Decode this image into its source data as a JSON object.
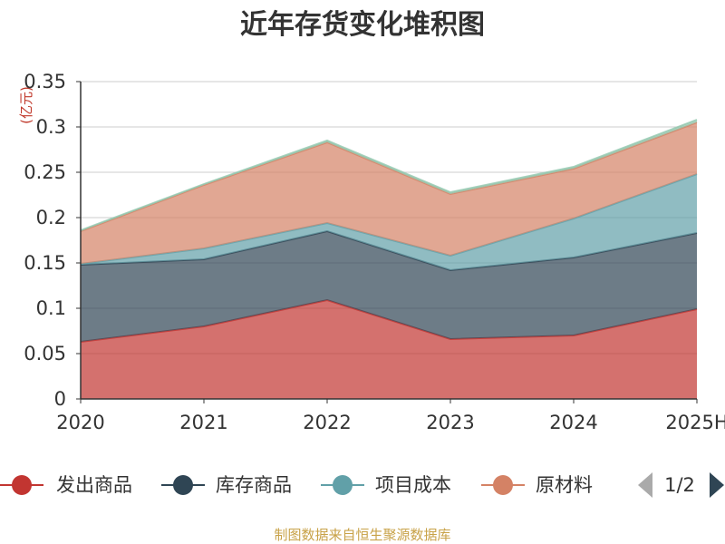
{
  "title": "近年存货变化堆积图",
  "unit_label": "(亿元)",
  "footer": "制图数据来自恒生聚源数据库",
  "pager": {
    "text": "1/2"
  },
  "chart_data": {
    "type": "area",
    "stacked": true,
    "title": "近年存货变化堆积图",
    "ylabel": "(亿元)",
    "categories": [
      "2020",
      "2021",
      "2022",
      "2023",
      "2024",
      "2025H"
    ],
    "ylim": [
      0,
      0.35
    ],
    "yticks": [
      "0",
      "0.05",
      "0.1",
      "0.15",
      "0.2",
      "0.25",
      "0.3",
      "0.35"
    ],
    "grid": true,
    "legend_position": "bottom",
    "series": [
      {
        "name": "发出商品",
        "color": "#c23531",
        "values": [
          0.063,
          0.08,
          0.109,
          0.066,
          0.07,
          0.099
        ]
      },
      {
        "name": "库存商品",
        "color": "#2f4554",
        "values": [
          0.085,
          0.074,
          0.076,
          0.076,
          0.086,
          0.084
        ]
      },
      {
        "name": "项目成本",
        "color": "#61a0a8",
        "values": [
          0.001,
          0.012,
          0.009,
          0.016,
          0.043,
          0.065
        ]
      },
      {
        "name": "原材料",
        "color": "#d48265",
        "values": [
          0.036,
          0.07,
          0.089,
          0.068,
          0.055,
          0.057
        ]
      },
      {
        "name": "",
        "color": "#91c7ae",
        "values": [
          0.001,
          0.001,
          0.002,
          0.002,
          0.002,
          0.003
        ]
      }
    ]
  }
}
